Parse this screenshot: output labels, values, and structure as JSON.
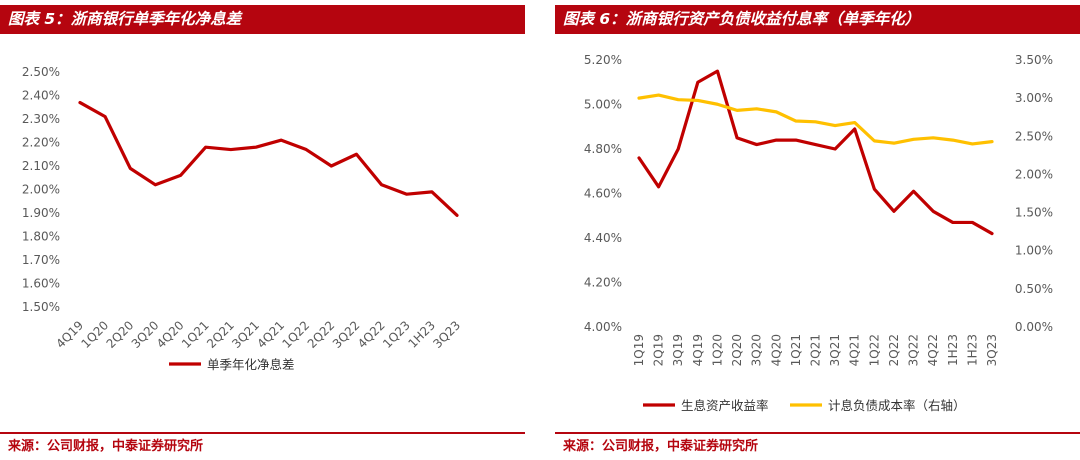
{
  "panels": {
    "left": {
      "title": "图表 5：浙商银行单季年化净息差",
      "source": "来源：公司财报，中泰证券研究所"
    },
    "right": {
      "title": "图表 6：浙商银行资产负债收益付息率（单季年化）",
      "source": "来源：公司财报，中泰证券研究所"
    }
  },
  "chart_data": [
    {
      "type": "line",
      "title": "",
      "categories": [
        "4Q19",
        "1Q20",
        "2Q20",
        "3Q20",
        "4Q20",
        "1Q21",
        "2Q21",
        "3Q21",
        "4Q21",
        "1Q22",
        "2Q22",
        "3Q22",
        "4Q22",
        "1Q23",
        "1H23",
        "3Q23"
      ],
      "series": [
        {
          "name": "单季年化净息差",
          "color": "#c00000",
          "values": [
            2.37,
            2.31,
            2.09,
            2.02,
            2.06,
            2.18,
            2.17,
            2.18,
            2.21,
            2.17,
            2.1,
            2.15,
            2.02,
            1.98,
            1.99,
            1.89
          ]
        }
      ],
      "y_ticks": [
        "2.50%",
        "2.40%",
        "2.30%",
        "2.20%",
        "2.10%",
        "2.00%",
        "1.90%",
        "1.80%",
        "1.70%",
        "1.60%",
        "1.50%"
      ],
      "ylim": [
        1.5,
        2.5
      ],
      "grid": false,
      "legend": "bottom"
    },
    {
      "type": "line",
      "title": "",
      "categories": [
        "1Q19",
        "2Q19",
        "3Q19",
        "4Q19",
        "1Q20",
        "2Q20",
        "3Q20",
        "4Q20",
        "1Q21",
        "2Q21",
        "3Q21",
        "4Q21",
        "1Q22",
        "2Q22",
        "3Q22",
        "4Q22",
        "1H23",
        "1H23",
        "3Q23"
      ],
      "series": [
        {
          "name": "生息资产收益率",
          "axis": "left",
          "color": "#c00000",
          "values": [
            4.76,
            4.63,
            4.8,
            5.1,
            5.15,
            4.85,
            4.82,
            4.84,
            4.84,
            4.82,
            4.8,
            4.89,
            4.62,
            4.52,
            4.61,
            4.52,
            4.47,
            4.47,
            4.42
          ]
        },
        {
          "name": "计息负债成本率（右轴）",
          "axis": "right",
          "color": "#ffc000",
          "values": [
            3.0,
            3.04,
            2.98,
            2.97,
            2.92,
            2.84,
            2.86,
            2.82,
            2.7,
            2.69,
            2.64,
            2.68,
            2.44,
            2.41,
            2.46,
            2.48,
            2.45,
            2.4,
            2.43
          ]
        }
      ],
      "y_left_ticks": [
        "5.20%",
        "5.00%",
        "4.80%",
        "4.60%",
        "4.40%",
        "4.20%",
        "4.00%"
      ],
      "y_right_ticks": [
        "3.50%",
        "3.00%",
        "2.50%",
        "2.00%",
        "1.50%",
        "1.00%",
        "0.50%",
        "0.00%"
      ],
      "ylim_left": [
        4.0,
        5.2
      ],
      "ylim_right": [
        0.0,
        3.5
      ],
      "grid": false,
      "legend": "bottom"
    }
  ]
}
